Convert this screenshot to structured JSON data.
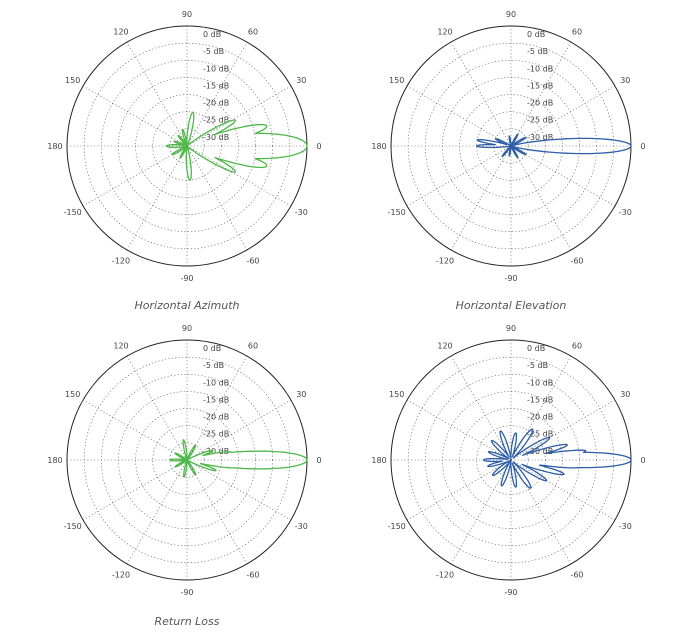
{
  "captions": [
    "Horizontal Azimuth",
    "Horizontal Elevation",
    "Return Loss"
  ],
  "chart_data": [
    {
      "type": "polar",
      "color": "#4db848",
      "angle_labels": [
        "0",
        "30",
        "60",
        "90",
        "120",
        "150",
        "180",
        "-150",
        "-120",
        "-90",
        "-60",
        "-30"
      ],
      "radial_labels": [
        "0 dB",
        "-5 dB",
        "-10 dB",
        "-15 dB",
        "-20 dB",
        "-25 dB",
        "-30 dB"
      ],
      "r_range_db": [
        -35,
        0
      ],
      "lobes": [
        {
          "angle": 0,
          "level_db": 0,
          "width": 10
        },
        {
          "angle": 14,
          "level_db": -11,
          "width": 6
        },
        {
          "angle": -14,
          "level_db": -11,
          "width": 6
        },
        {
          "angle": 28,
          "level_db": -19,
          "width": 5
        },
        {
          "angle": -28,
          "level_db": -19,
          "width": 5
        },
        {
          "angle": 80,
          "level_db": -25,
          "width": 6
        },
        {
          "angle": -85,
          "level_db": -25,
          "width": 6
        },
        {
          "angle": 105,
          "level_db": -30,
          "width": 5
        },
        {
          "angle": 130,
          "level_db": -31,
          "width": 5
        },
        {
          "angle": 160,
          "level_db": -31,
          "width": 5
        },
        {
          "angle": 180,
          "level_db": -29,
          "width": 6
        },
        {
          "angle": -120,
          "level_db": -31,
          "width": 5
        },
        {
          "angle": -150,
          "level_db": -30,
          "width": 5
        }
      ]
    },
    {
      "type": "polar",
      "color": "#2f5ea8",
      "angle_labels": [
        "0",
        "30",
        "60",
        "90",
        "120",
        "150",
        "180",
        "-150",
        "-120",
        "-90",
        "-60",
        "-30"
      ],
      "radial_labels": [
        "0 dB",
        "-5 dB",
        "-10 dB",
        "-15 dB",
        "-20 dB",
        "-25 dB",
        "-30 dB"
      ],
      "r_range_db": [
        -35,
        0
      ],
      "lobes": [
        {
          "angle": 0,
          "level_db": 0,
          "width": 6
        },
        {
          "angle": 170,
          "level_db": -25,
          "width": 4
        },
        {
          "angle": 180,
          "level_db": -25,
          "width": 4
        },
        {
          "angle": 155,
          "level_db": -30,
          "width": 4
        },
        {
          "angle": 30,
          "level_db": -30,
          "width": 4
        },
        {
          "angle": -30,
          "level_db": -30,
          "width": 4
        },
        {
          "angle": 60,
          "level_db": -31,
          "width": 4
        },
        {
          "angle": -60,
          "level_db": -31,
          "width": 4
        },
        {
          "angle": 100,
          "level_db": -32,
          "width": 4
        },
        {
          "angle": -100,
          "level_db": -32,
          "width": 4
        },
        {
          "angle": -130,
          "level_db": -31,
          "width": 4
        }
      ]
    },
    {
      "type": "polar",
      "color": "#4db848",
      "angle_labels": [
        "0",
        "30",
        "60",
        "90",
        "120",
        "150",
        "180",
        "-150",
        "-120",
        "-90",
        "-60",
        "-30"
      ],
      "radial_labels": [
        "0 dB",
        "-5 dB",
        "-10 dB",
        "-15 dB",
        "-20 dB",
        "-25 dB",
        "-30 dB"
      ],
      "r_range_db": [
        -35,
        0
      ],
      "lobes": [
        {
          "angle": 0,
          "level_db": 0,
          "width": 7
        },
        {
          "angle": 10,
          "level_db": -22,
          "width": 4
        },
        {
          "angle": -8,
          "level_db": -20,
          "width": 4
        },
        {
          "angle": 20,
          "level_db": -27,
          "width": 4
        },
        {
          "angle": -20,
          "level_db": -26,
          "width": 4
        },
        {
          "angle": 60,
          "level_db": -30,
          "width": 5
        },
        {
          "angle": -60,
          "level_db": -30,
          "width": 5
        },
        {
          "angle": 100,
          "level_db": -29,
          "width": 5
        },
        {
          "angle": -100,
          "level_db": -30,
          "width": 5
        },
        {
          "angle": 150,
          "level_db": -31,
          "width": 5
        },
        {
          "angle": 180,
          "level_db": -30,
          "width": 5
        },
        {
          "angle": -150,
          "level_db": -31,
          "width": 5
        }
      ]
    },
    {
      "type": "polar",
      "color": "#2f5ea8",
      "angle_labels": [
        "0",
        "30",
        "60",
        "90",
        "120",
        "150",
        "180",
        "-150",
        "-120",
        "-90",
        "-60",
        "-30"
      ],
      "radial_labels": [
        "0 dB",
        "-5 dB",
        "-10 dB",
        "-15 dB",
        "-20 dB",
        "-25 dB",
        "-30 dB"
      ],
      "r_range_db": [
        -35,
        0
      ],
      "lobes": [
        {
          "angle": 0,
          "level_db": 0,
          "width": 6
        },
        {
          "angle": 7,
          "level_db": -13,
          "width": 3
        },
        {
          "angle": -6,
          "level_db": -15,
          "width": 3
        },
        {
          "angle": 15,
          "level_db": -18,
          "width": 4
        },
        {
          "angle": -15,
          "level_db": -19,
          "width": 4
        },
        {
          "angle": 30,
          "level_db": -22,
          "width": 5
        },
        {
          "angle": -30,
          "level_db": -23,
          "width": 5
        },
        {
          "angle": 55,
          "level_db": -24,
          "width": 6
        },
        {
          "angle": -55,
          "level_db": -25,
          "width": 6
        },
        {
          "angle": 80,
          "level_db": -27,
          "width": 6
        },
        {
          "angle": -80,
          "level_db": -27,
          "width": 6
        },
        {
          "angle": 110,
          "level_db": -26,
          "width": 6
        },
        {
          "angle": -110,
          "level_db": -27,
          "width": 6
        },
        {
          "angle": 135,
          "level_db": -27,
          "width": 6
        },
        {
          "angle": -140,
          "level_db": -28,
          "width": 6
        },
        {
          "angle": 160,
          "level_db": -28,
          "width": 5
        },
        {
          "angle": -165,
          "level_db": -28,
          "width": 5
        },
        {
          "angle": 180,
          "level_db": -27,
          "width": 5
        }
      ]
    }
  ]
}
